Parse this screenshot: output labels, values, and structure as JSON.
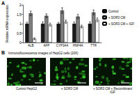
{
  "chart_data": {
    "type": "bar",
    "panel_label": "A",
    "y_label": "Relative mRNA expression",
    "categories": [
      "ALB",
      "AFP",
      "CYP3A4",
      "HNF4A",
      "TTR"
    ],
    "series": [
      {
        "name": "Control",
        "color": "#1a1a1a",
        "values": [
          1,
          1,
          1,
          1,
          1
        ],
        "errors": [
          0.08,
          0.1,
          0.07,
          0.09,
          0.1
        ]
      },
      {
        "name": "+ SOR3 CM",
        "color": "#7f7f7f",
        "values": [
          1.55,
          1.42,
          1.7,
          1.38,
          1.6
        ],
        "errors": [
          0.12,
          0.1,
          0.15,
          0.11,
          0.13
        ]
      },
      {
        "name": "+ SOR3 CM + IGF",
        "color": "#ffffff",
        "values": [
          0.2,
          0.95,
          1.1,
          0.85,
          1.2
        ],
        "errors": [
          0.05,
          0.08,
          0.09,
          0.07,
          0.1
        ]
      }
    ],
    "ylim": [
      0,
      2
    ],
    "yticks": [
      0,
      0.5,
      1,
      1.5,
      2
    ],
    "legend": "right",
    "grid": false
  },
  "panel_b": {
    "label": "B",
    "title": "Immunofluorescence images of HepG2 cells (20X)",
    "images": [
      {
        "caption": "Control HepG2"
      },
      {
        "caption": "+ SOR3 CM"
      },
      {
        "caption": "+ SOR3 CM + Recombinant IGF"
      }
    ]
  }
}
